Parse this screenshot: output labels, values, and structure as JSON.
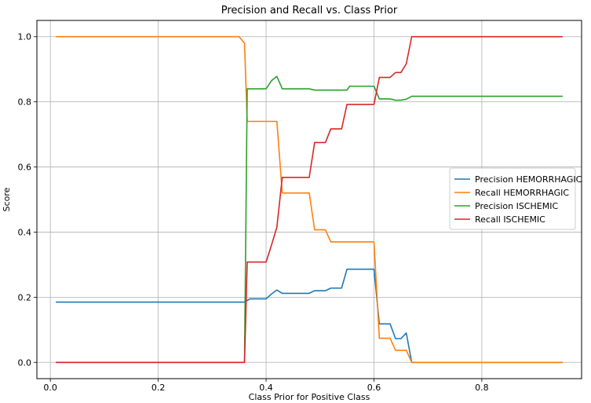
{
  "chart_data": {
    "type": "line",
    "title": "Precision and Recall vs. Class Prior",
    "xlabel": "Class Prior for Positive Class",
    "ylabel": "Score",
    "xlim": [
      -0.025,
      0.985
    ],
    "ylim": [
      -0.05,
      1.05
    ],
    "xticks": [
      0.0,
      0.2,
      0.4,
      0.6,
      0.8
    ],
    "xtick_labels": [
      "0.0",
      "0.2",
      "0.4",
      "0.6",
      "0.8"
    ],
    "yticks": [
      0.0,
      0.2,
      0.4,
      0.6,
      0.8,
      1.0
    ],
    "ytick_labels": [
      "0.0",
      "0.2",
      "0.4",
      "0.6",
      "0.8",
      "1.0"
    ],
    "grid": true,
    "legend_position": "center-right",
    "series": [
      {
        "name": "Precision HEMORRHAGIC",
        "color": "#1f77b4",
        "points": [
          [
            0.01,
            0.185
          ],
          [
            0.35,
            0.185
          ],
          [
            0.36,
            0.185
          ],
          [
            0.37,
            0.195
          ],
          [
            0.39,
            0.195
          ],
          [
            0.4,
            0.195
          ],
          [
            0.41,
            0.21
          ],
          [
            0.42,
            0.222
          ],
          [
            0.43,
            0.212
          ],
          [
            0.47,
            0.212
          ],
          [
            0.48,
            0.212
          ],
          [
            0.49,
            0.22
          ],
          [
            0.51,
            0.22
          ],
          [
            0.52,
            0.228
          ],
          [
            0.54,
            0.228
          ],
          [
            0.55,
            0.286
          ],
          [
            0.6,
            0.286
          ],
          [
            0.61,
            0.118
          ],
          [
            0.63,
            0.118
          ],
          [
            0.64,
            0.073
          ],
          [
            0.65,
            0.073
          ],
          [
            0.66,
            0.09
          ],
          [
            0.67,
            0.0
          ],
          [
            0.95,
            0.0
          ]
        ]
      },
      {
        "name": "Recall HEMORRHAGIC",
        "color": "#ff7f0e",
        "points": [
          [
            0.01,
            1.0
          ],
          [
            0.35,
            1.0
          ],
          [
            0.36,
            0.98
          ],
          [
            0.365,
            0.74
          ],
          [
            0.41,
            0.74
          ],
          [
            0.42,
            0.74
          ],
          [
            0.43,
            0.52
          ],
          [
            0.48,
            0.52
          ],
          [
            0.49,
            0.407
          ],
          [
            0.51,
            0.407
          ],
          [
            0.52,
            0.37
          ],
          [
            0.6,
            0.37
          ],
          [
            0.61,
            0.074
          ],
          [
            0.63,
            0.074
          ],
          [
            0.64,
            0.037
          ],
          [
            0.66,
            0.037
          ],
          [
            0.67,
            0.0
          ],
          [
            0.95,
            0.0
          ]
        ]
      },
      {
        "name": "Precision ISCHEMIC",
        "color": "#2ca02c",
        "points": [
          [
            0.01,
            0.0
          ],
          [
            0.355,
            0.0
          ],
          [
            0.36,
            0.0
          ],
          [
            0.365,
            0.84
          ],
          [
            0.4,
            0.84
          ],
          [
            0.41,
            0.865
          ],
          [
            0.42,
            0.878
          ],
          [
            0.43,
            0.84
          ],
          [
            0.48,
            0.84
          ],
          [
            0.49,
            0.836
          ],
          [
            0.55,
            0.836
          ],
          [
            0.555,
            0.848
          ],
          [
            0.6,
            0.848
          ],
          [
            0.61,
            0.809
          ],
          [
            0.63,
            0.809
          ],
          [
            0.64,
            0.805
          ],
          [
            0.65,
            0.805
          ],
          [
            0.66,
            0.808
          ],
          [
            0.67,
            0.817
          ],
          [
            0.95,
            0.817
          ]
        ]
      },
      {
        "name": "Recall ISCHEMIC",
        "color": "#d62728",
        "points": [
          [
            0.01,
            0.0
          ],
          [
            0.355,
            0.0
          ],
          [
            0.36,
            0.0
          ],
          [
            0.365,
            0.308
          ],
          [
            0.39,
            0.308
          ],
          [
            0.4,
            0.308
          ],
          [
            0.41,
            0.36
          ],
          [
            0.42,
            0.415
          ],
          [
            0.43,
            0.568
          ],
          [
            0.48,
            0.568
          ],
          [
            0.49,
            0.675
          ],
          [
            0.51,
            0.675
          ],
          [
            0.52,
            0.717
          ],
          [
            0.54,
            0.717
          ],
          [
            0.55,
            0.792
          ],
          [
            0.6,
            0.792
          ],
          [
            0.61,
            0.875
          ],
          [
            0.63,
            0.875
          ],
          [
            0.64,
            0.89
          ],
          [
            0.65,
            0.89
          ],
          [
            0.66,
            0.917
          ],
          [
            0.67,
            1.0
          ],
          [
            0.95,
            1.0
          ]
        ]
      }
    ]
  }
}
